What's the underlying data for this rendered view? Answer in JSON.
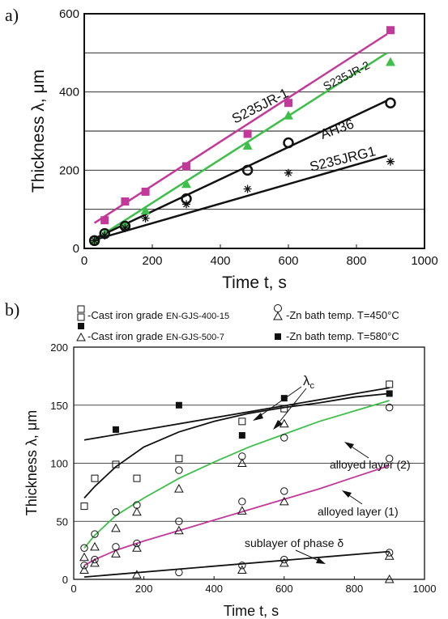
{
  "chart_data": [
    {
      "panel_label": "a)",
      "type": "scatter",
      "xlabel": "Time t, s",
      "ylabel": "Thickness λ, μm",
      "xlim": [
        0,
        1000
      ],
      "ylim": [
        0,
        600
      ],
      "xticks": [
        "0",
        "200",
        "400",
        "600",
        "800",
        "1000"
      ],
      "yticks": [
        "0",
        "200",
        "400",
        "600"
      ],
      "grid": "horizontal",
      "series": [
        {
          "name": "S235JR-1",
          "color": "#c2399a",
          "marker": "square",
          "x": [
            60,
            120,
            180,
            300,
            480,
            600,
            900
          ],
          "y": [
            72,
            120,
            145,
            210,
            293,
            372,
            558
          ],
          "line": [
            [
              30,
              65
            ],
            [
              890,
              548
            ]
          ]
        },
        {
          "name": "S235JR-2",
          "color": "#3dbf4a",
          "marker": "triangle",
          "x": [
            30,
            60,
            120,
            180,
            300,
            480,
            600,
            900
          ],
          "y": [
            20,
            38,
            62,
            97,
            165,
            263,
            340,
            477
          ],
          "line": [
            [
              30,
              22
            ],
            [
              890,
              500
            ]
          ]
        },
        {
          "name": "AH36",
          "color": "#111111",
          "marker": "circle",
          "x": [
            30,
            60,
            120,
            300,
            480,
            600,
            900
          ],
          "y": [
            20,
            38,
            57,
            127,
            200,
            270,
            372
          ],
          "line": [
            [
              30,
              25
            ],
            [
              890,
              378
            ]
          ]
        },
        {
          "name": "S235JRG1",
          "color": "#111111",
          "marker": "asterisk",
          "x": [
            30,
            60,
            120,
            180,
            300,
            480,
            600,
            900
          ],
          "y": [
            20,
            33,
            52,
            77,
            113,
            152,
            193,
            222
          ],
          "line": [
            [
              30,
              22
            ],
            [
              890,
              237
            ]
          ]
        }
      ]
    },
    {
      "panel_label": "b)",
      "type": "scatter",
      "xlabel": "Time t, s",
      "ylabel": "Thickness λ, μm",
      "xlim": [
        0,
        1000
      ],
      "ylim": [
        0,
        200
      ],
      "xticks": [
        "0",
        "200",
        "400",
        "600",
        "800",
        "1000"
      ],
      "yticks": [
        "0",
        "50",
        "100",
        "150",
        "200"
      ],
      "grid": "horizontal",
      "legend": {
        "row1_left": "-Cast iron grade ",
        "row1_left_grade": "EN-GJS-400-15",
        "row1_right": "-Zn bath temp. T=450°C",
        "row2_left": "-Cast iron grade ",
        "row2_left_grade": "EN-GJS-500-7",
        "row2_right": "-Zn bath temp. T=580°C"
      },
      "annotations": {
        "lambda_c": "λ",
        "lambda_c_sub": "c",
        "alloyed2": "alloyed layer (2)",
        "alloyed1": "alloyed layer (1)",
        "sublayer": "sublayer of phase δ"
      },
      "curves": [
        {
          "id": "lambda-c",
          "color": "#111111",
          "x": [
            30,
            900
          ],
          "y": [
            120,
            165
          ],
          "shape": "linear"
        },
        {
          "id": "lambda-c-lower",
          "color": "#111111",
          "x": [
            30,
            60,
            120,
            200,
            300,
            400,
            500,
            600,
            700,
            800,
            900
          ],
          "y": [
            70,
            80,
            97,
            114,
            127,
            136,
            143,
            148,
            152,
            157,
            160
          ]
        },
        {
          "id": "alloyed-2",
          "color": "#3dbf4a",
          "x": [
            30,
            60,
            120,
            200,
            300,
            400,
            500,
            600,
            700,
            800,
            900
          ],
          "y": [
            27,
            38,
            55,
            70,
            87,
            101,
            114,
            125,
            136,
            145,
            154
          ]
        },
        {
          "id": "alloyed-1",
          "color": "#c2399a",
          "x": [
            30,
            60,
            120,
            200,
            300,
            400,
            500,
            600,
            700,
            800,
            900
          ],
          "y": [
            12,
            17,
            25,
            33,
            42,
            51,
            60,
            69,
            78,
            88,
            98
          ]
        },
        {
          "id": "sublayer",
          "color": "#111111",
          "x": [
            30,
            900
          ],
          "y": [
            2,
            24
          ],
          "shape": "linear"
        }
      ],
      "points": {
        "open_square": {
          "x": [
            30,
            60,
            120,
            180,
            300,
            480,
            600,
            900
          ],
          "y": [
            63,
            87,
            99,
            87,
            104,
            136,
            147,
            168
          ]
        },
        "filled_square": {
          "x": [
            120,
            300,
            480,
            600,
            900
          ],
          "y": [
            129,
            150,
            124,
            156,
            160
          ]
        },
        "open_circle": {
          "x": [
            30,
            60,
            120,
            180,
            300,
            480,
            600,
            900,
            30,
            60,
            120,
            180,
            300,
            480,
            600,
            900,
            300,
            480,
            600,
            900
          ],
          "y": [
            27,
            39,
            58,
            64,
            94,
            106,
            122,
            148,
            12,
            17,
            28,
            31,
            50,
            67,
            76,
            104,
            6,
            12,
            17,
            23
          ]
        },
        "open_triangle": {
          "x": [
            30,
            60,
            120,
            180,
            300,
            480,
            600,
            900,
            30,
            60,
            120,
            180,
            300,
            480,
            600,
            180,
            480,
            600,
            900
          ],
          "y": [
            19,
            28,
            44,
            58,
            78,
            100,
            134,
            0,
            8,
            14,
            22,
            27,
            42,
            59,
            67,
            4,
            8,
            14,
            20
          ]
        }
      }
    }
  ]
}
